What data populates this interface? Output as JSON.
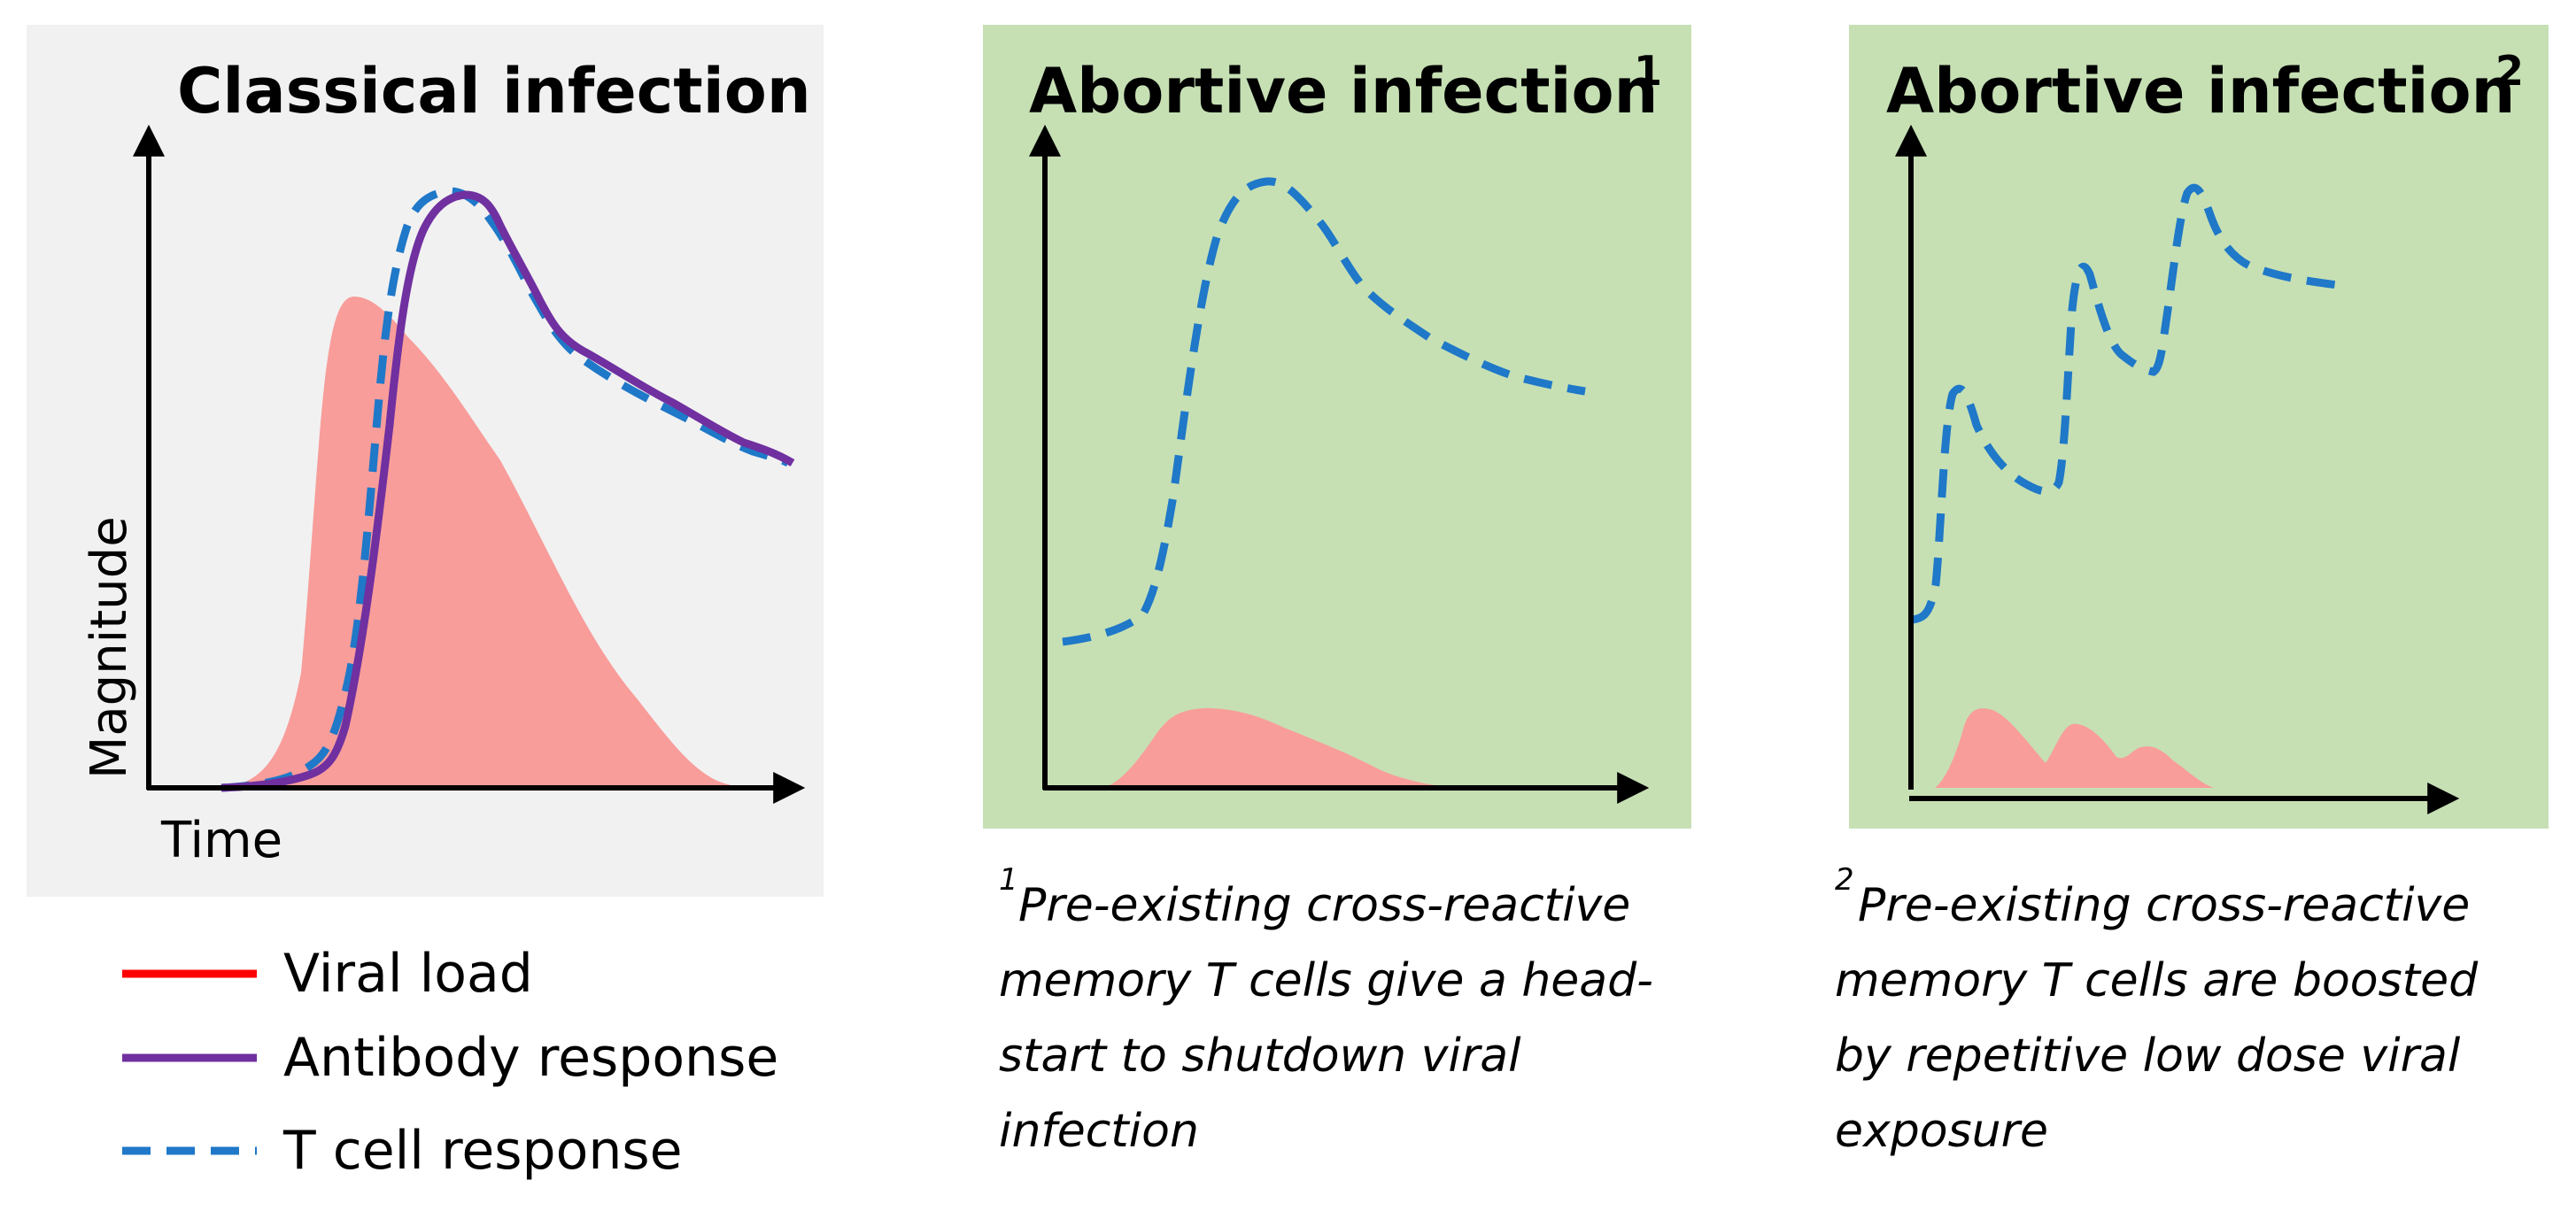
{
  "colors": {
    "panel_gray": "#f1f1f1",
    "panel_green": "#c6e0b4",
    "viral_fill": "#f89d9a",
    "viral_legend": "#ff0000",
    "antibody": "#7030a0",
    "tcell": "#1f78c8",
    "axis": "#000000"
  },
  "panels": [
    {
      "id": "classical",
      "title": "Classical infection",
      "superscript": "",
      "axis_y_label": "Magnitude",
      "axis_x_label": "Time"
    },
    {
      "id": "abortive1",
      "title": "Abortive infection",
      "superscript": "1"
    },
    {
      "id": "abortive2",
      "title": "Abortive infection",
      "superscript": "2"
    }
  ],
  "legend": [
    {
      "label": "Viral load",
      "style": "solid-red"
    },
    {
      "label": "Antibody response",
      "style": "solid-purple"
    },
    {
      "label": "T cell response",
      "style": "dashed-blue"
    }
  ],
  "notes": [
    {
      "marker": "1",
      "lines": [
        "Pre-existing cross-reactive",
        "memory T cells give a head-",
        "start to shutdown viral",
        "infection"
      ]
    },
    {
      "marker": "2",
      "lines": [
        "Pre-existing cross-reactive",
        "memory T cells are boosted",
        "by repetitive low dose viral",
        "exposure"
      ]
    }
  ]
}
